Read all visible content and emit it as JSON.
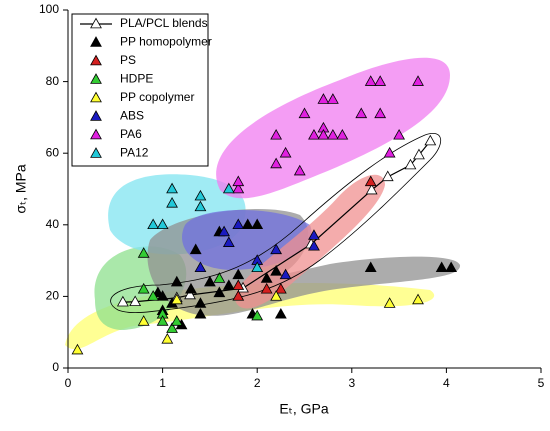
{
  "chart_data": {
    "type": "scatter",
    "xlabel": "Eₜ, GPa",
    "ylabel": "σₜ, MPa",
    "xlim": [
      0,
      5
    ],
    "ylim": [
      0,
      100
    ],
    "xticks": [
      0,
      1,
      2,
      3,
      4,
      5
    ],
    "yticks": [
      0,
      20,
      40,
      60,
      80,
      100
    ],
    "series": [
      {
        "name": "PLA/PCL blends",
        "color": "#ffffff",
        "line": true,
        "x": [
          0.58,
          0.71,
          1.15,
          1.29,
          1.85,
          2.57,
          3.21,
          3.38,
          3.62,
          3.71,
          3.83
        ],
        "y": [
          18.4,
          18.5,
          19.6,
          20.4,
          22.3,
          34.6,
          49.7,
          53.4,
          56.7,
          59.5,
          63.4
        ]
      },
      {
        "name": "PP homopolymer",
        "color": "#000000",
        "x": [
          0.95,
          1.0,
          1.0,
          1.1,
          1.15,
          1.2,
          1.3,
          1.35,
          1.4,
          1.4,
          1.5,
          1.6,
          1.6,
          1.7,
          1.8,
          1.9,
          1.95,
          2.0,
          2.1,
          2.2,
          2.25,
          3.2,
          3.95,
          4.05
        ],
        "y": [
          21,
          20,
          16,
          18,
          24,
          12,
          22,
          33,
          18,
          15,
          24,
          21,
          38,
          23,
          26,
          40,
          15,
          40,
          25,
          27,
          15,
          28,
          28,
          28
        ]
      },
      {
        "name": "PS",
        "color": "#d42020",
        "x": [
          1.8,
          1.8,
          2.1,
          2.25,
          3.2
        ],
        "y": [
          20,
          23,
          22,
          22,
          52
        ]
      },
      {
        "name": "HDPE",
        "color": "#33cc33",
        "x": [
          0.8,
          0.8,
          0.9,
          1.0,
          1.0,
          1.1,
          1.15,
          1.6,
          2.0
        ],
        "y": [
          32,
          22,
          20,
          15,
          13,
          11,
          13,
          25,
          14.5
        ]
      },
      {
        "name": "PP copolymer",
        "color": "#ffff33",
        "x": [
          0.1,
          0.8,
          1.05,
          1.15,
          2.2,
          3.4,
          3.7
        ],
        "y": [
          5,
          13,
          8,
          19,
          20,
          18,
          19
        ]
      },
      {
        "name": "ABS",
        "color": "#1a1ac0",
        "x": [
          1.4,
          1.65,
          1.7,
          1.8,
          2.0,
          2.2,
          2.3,
          2.6,
          2.6
        ],
        "y": [
          28,
          38,
          35,
          40,
          30,
          33,
          26,
          37,
          34
        ]
      },
      {
        "name": "PA6",
        "color": "#e020e0",
        "x": [
          1.8,
          1.8,
          2.2,
          2.2,
          2.3,
          2.45,
          2.5,
          2.6,
          2.7,
          2.7,
          2.7,
          2.8,
          2.8,
          2.9,
          3.1,
          3.2,
          3.3,
          3.3,
          3.4,
          3.5,
          3.7
        ],
        "y": [
          50,
          52,
          65,
          57,
          60,
          55,
          71,
          65,
          67,
          75,
          65,
          75,
          65,
          65,
          71,
          80,
          80,
          71,
          60,
          65,
          80
        ]
      },
      {
        "name": "PA12",
        "color": "#22c8d8",
        "x": [
          0.9,
          1.0,
          1.1,
          1.1,
          1.4,
          1.4,
          1.7,
          2.0
        ],
        "y": [
          40,
          40,
          50,
          46,
          48,
          45,
          50,
          28
        ]
      }
    ]
  }
}
